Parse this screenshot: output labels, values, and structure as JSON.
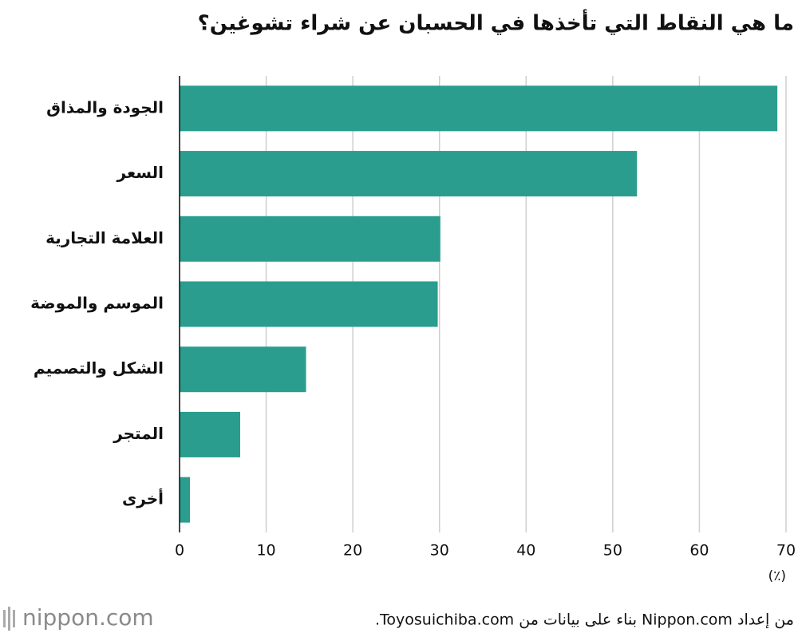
{
  "chart_data": {
    "type": "barh",
    "title": "ما هي النقاط التي تأخذها في الحسبان عن شراء تشوغين؟",
    "categories": [
      "الجودة والمذاق",
      "السعر",
      "العلامة التجارية",
      "الموسم والموضة",
      "الشكل والتصميم",
      "المتجر",
      "أخرى"
    ],
    "values": [
      69,
      52.8,
      30.1,
      29.8,
      14.6,
      7,
      1.2
    ],
    "color": "#2a9d8f",
    "xlim": [
      0,
      70
    ],
    "xticks": [
      0,
      10,
      20,
      30,
      40,
      50,
      60,
      70
    ],
    "x_label": "(٪)",
    "grid": true,
    "source": "من إعداد Nippon.com بناء على بيانات من Toyosuichiba.com.",
    "logo": "nippon.com"
  }
}
